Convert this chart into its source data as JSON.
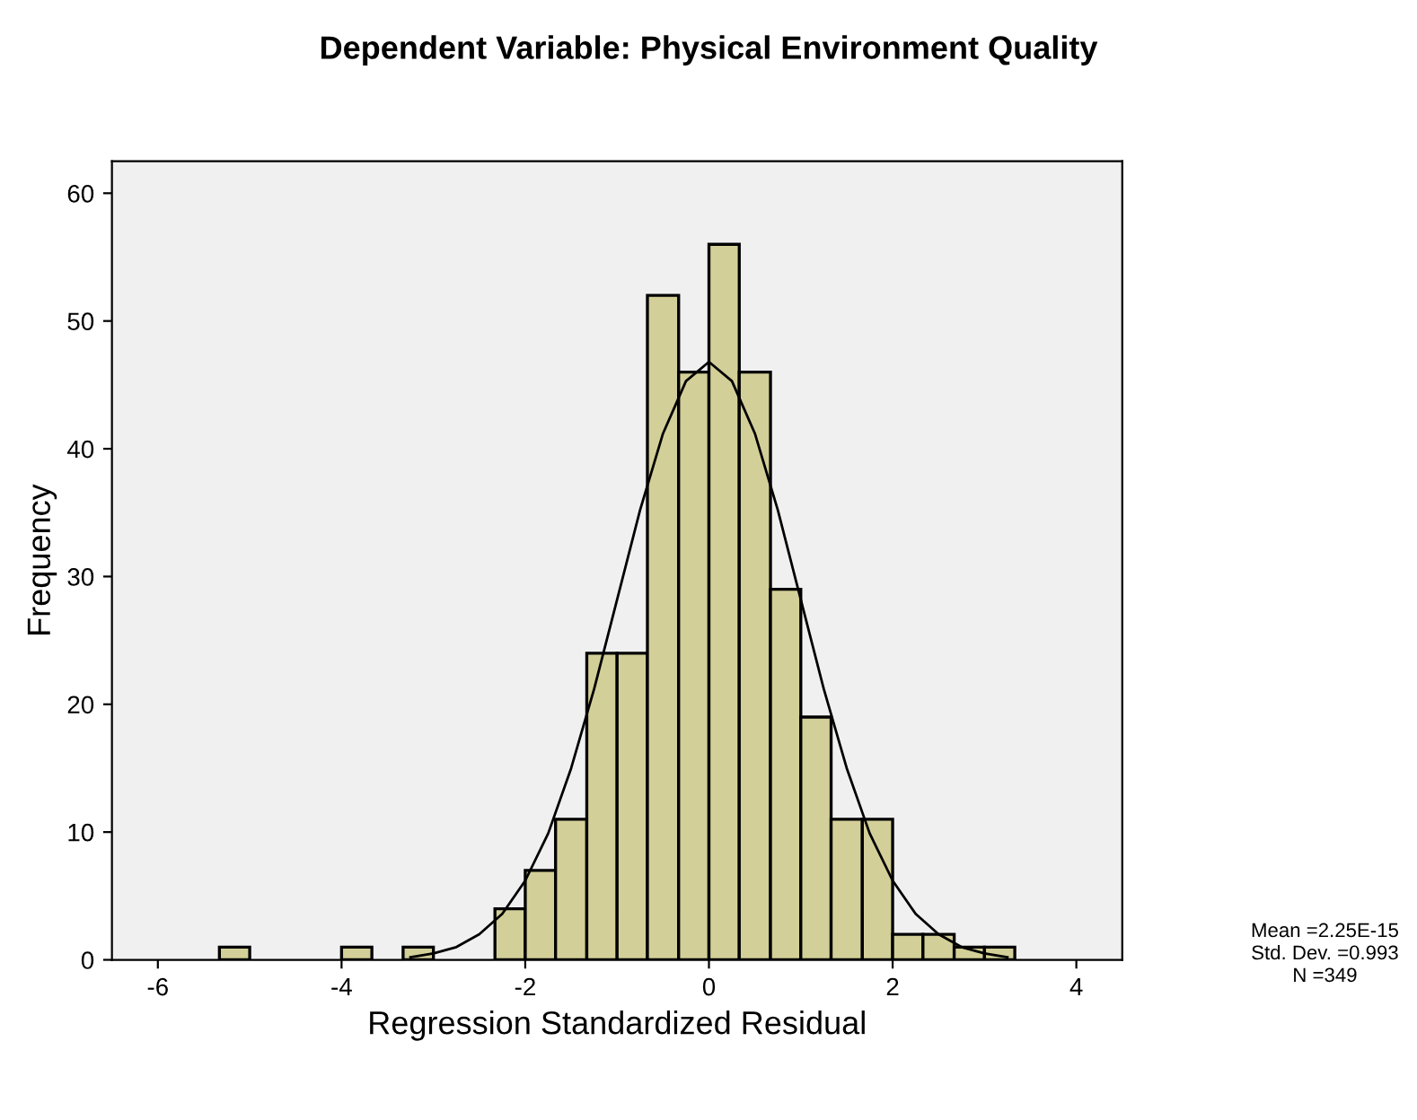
{
  "chart_data": {
    "type": "histogram",
    "title": "Dependent Variable: Physical Environment Quality",
    "xlabel": "Regression Standardized Residual",
    "ylabel": "Frequency",
    "bins": [
      -5.33,
      -5.0,
      -4.0,
      -3.67,
      -3.33,
      -3.0,
      -2.33,
      -2.0,
      -1.67,
      -1.33,
      -1.0,
      -0.67,
      -0.33,
      0.0,
      0.33,
      0.67,
      1.0,
      1.33,
      1.67,
      2.0,
      2.33,
      2.67,
      3.0,
      3.33
    ],
    "values": [
      1,
      0,
      1,
      0,
      1,
      0,
      4,
      7,
      11,
      24,
      24,
      52,
      46,
      56,
      46,
      29,
      19,
      11,
      11,
      2,
      2,
      1,
      1
    ],
    "color": "#d3cf98",
    "series": [
      {
        "type": "line",
        "color": "#000000",
        "x": [
          -3.25,
          -3.0,
          -2.75,
          -2.5,
          -2.25,
          -2.0,
          -1.75,
          -1.5,
          -1.25,
          -1.0,
          -0.75,
          -0.5,
          -0.25,
          0.0,
          0.25,
          0.5,
          0.75,
          1.0,
          1.25,
          1.5,
          1.75,
          2.0,
          2.25,
          2.5,
          2.75,
          3.0,
          3.25
        ],
        "values": [
          0.2,
          0.5,
          1.0,
          2.0,
          3.6,
          6.2,
          9.9,
          15.0,
          21.2,
          28.2,
          35.2,
          41.2,
          45.3,
          46.8,
          45.3,
          41.2,
          35.2,
          28.2,
          21.2,
          15.0,
          9.9,
          6.2,
          3.6,
          2.0,
          1.0,
          0.5,
          0.2
        ]
      }
    ],
    "xlim": [
      -6.5,
      4.5
    ],
    "xticks": [
      -6,
      -4,
      -2,
      0,
      2,
      4
    ],
    "ylim": [
      0,
      62.5
    ],
    "yticks": [
      0,
      10,
      20,
      30,
      40,
      50,
      60
    ],
    "grid": false,
    "legend": false,
    "annotations": [
      "Mean =2.25E-15",
      "Std. Dev. =0.993",
      "N =349"
    ]
  }
}
